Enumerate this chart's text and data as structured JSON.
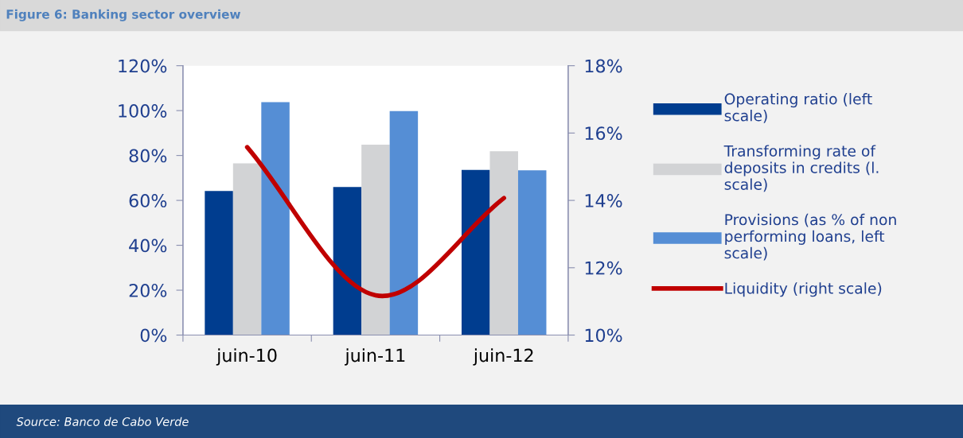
{
  "chart_data": {
    "type": "bar",
    "title": "Figure 6: Banking sector overview",
    "categories": [
      "juin-10",
      "juin-11",
      "juin-12"
    ],
    "series": [
      {
        "name": "Operating ratio (left scale)",
        "color": "#003d8f",
        "values": [
          64.2,
          66,
          73.6
        ]
      },
      {
        "name": "Transforming rate of deposits in credits (l. scale)",
        "color": "#d2d3d5",
        "values": [
          76.5,
          84.8,
          81.9
        ]
      },
      {
        "name": "Provisions (as % of non performing loans, left scale)",
        "color": "#558ed5",
        "values": [
          103.8,
          99.8,
          73.4
        ]
      },
      {
        "name": "Liquidity (right scale)",
        "color": "#c00000",
        "type": "line",
        "axis": "y2",
        "values": [
          15.58,
          11.18,
          14.07
        ]
      }
    ],
    "ylim": [
      0,
      120
    ],
    "yticks": [
      {
        "value": 0,
        "label": "0%"
      },
      {
        "value": 20,
        "label": "20%"
      },
      {
        "value": 40,
        "label": "40%"
      },
      {
        "value": 60,
        "label": "60%"
      },
      {
        "value": 80,
        "label": "80%"
      },
      {
        "value": 100,
        "label": "100%"
      },
      {
        "value": 120,
        "label": "120%"
      }
    ],
    "y2lim": [
      10,
      18
    ],
    "y2ticks": [
      {
        "value": 10,
        "label": "10%"
      },
      {
        "value": 12,
        "label": "12%"
      },
      {
        "value": 14,
        "label": "14%"
      },
      {
        "value": 16,
        "label": "16%"
      },
      {
        "value": 18,
        "label": "18%"
      }
    ],
    "legend": "right",
    "grid": false,
    "annotations": [
      "Source: Banco de Cabo Verde"
    ]
  }
}
